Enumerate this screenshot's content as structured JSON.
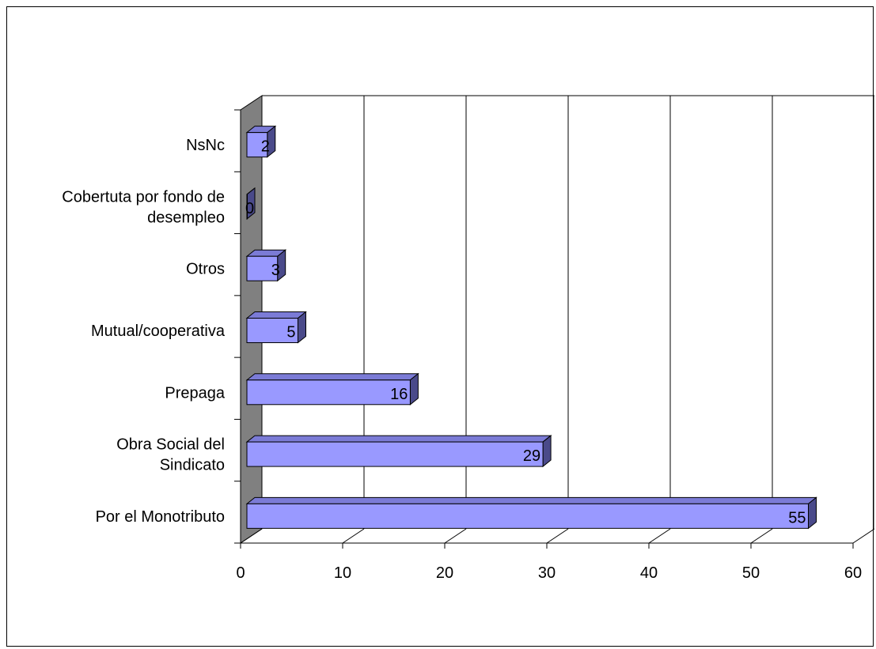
{
  "chart_data": {
    "type": "bar",
    "orientation": "horizontal",
    "style": "3d",
    "title": "",
    "xlabel": "",
    "ylabel": "",
    "categories": [
      "NsNc",
      "Cobertuta por fondo de desempleo",
      "Otros",
      "Mutual/cooperativa",
      "Prepaga",
      "Obra Social del Sindicato",
      "Por el Monotributo"
    ],
    "category_lines": [
      [
        "NsNc"
      ],
      [
        "Cobertuta por fondo de",
        "desempleo"
      ],
      [
        "Otros"
      ],
      [
        "Mutual/cooperativa"
      ],
      [
        "Prepaga"
      ],
      [
        "Obra Social del",
        "Sindicato"
      ],
      [
        "Por el Monotributo"
      ]
    ],
    "values": [
      2,
      0,
      3,
      5,
      16,
      29,
      55
    ],
    "xlim": [
      0,
      60
    ],
    "xticks": [
      0,
      10,
      20,
      30,
      40,
      50,
      60
    ],
    "grid": "vertical",
    "legend": "none",
    "colors": {
      "bar_front": "#9999ff",
      "bar_top": "#7b7bd6",
      "bar_side": "#4a4a8a",
      "back_wall": "#808080",
      "outline": "#000000",
      "grid": "#000000"
    }
  }
}
